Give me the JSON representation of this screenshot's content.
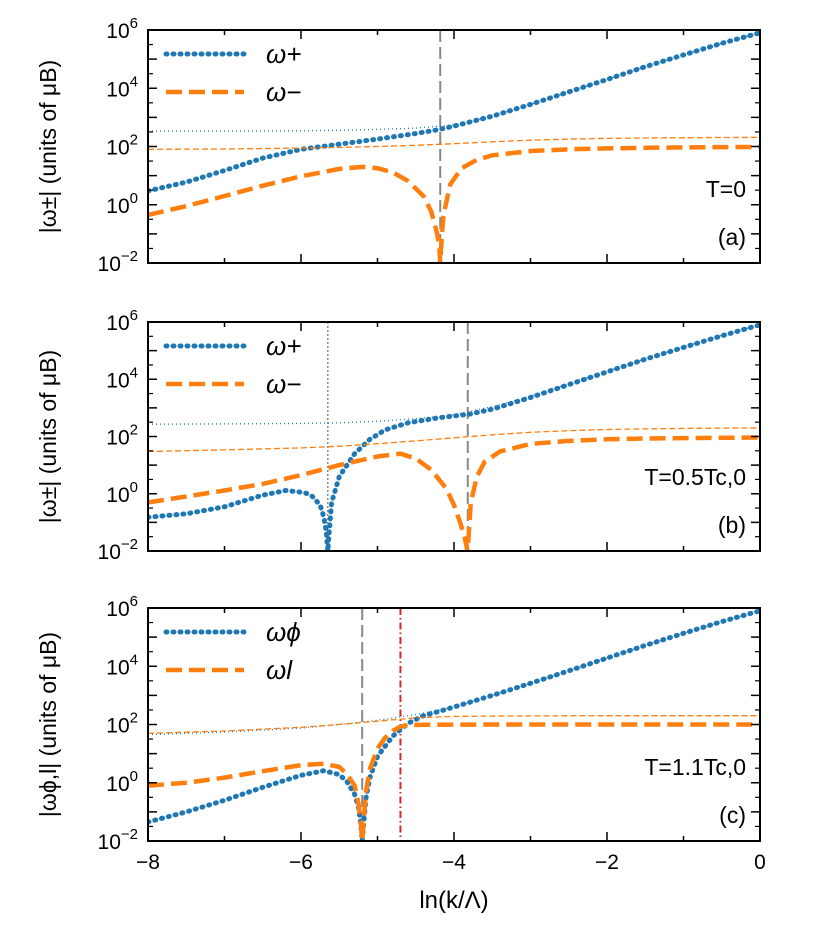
{
  "chart_data": {
    "type": "line",
    "x_axis": {
      "label": "ln(k/Λ)",
      "ticks": [
        -8,
        -6,
        -4,
        -2,
        0
      ],
      "tick_labels": [
        "−8",
        "−6",
        "−4",
        "−2",
        "0"
      ],
      "xlim": [
        -8,
        0
      ]
    },
    "y_scale": "log",
    "ylim": [
      0.01,
      1000000
    ],
    "y_tick_exponents": [
      -2,
      0,
      2,
      4,
      6
    ],
    "y_tick_base": "10",
    "colors": {
      "plus": "#1f77b4",
      "minus": "#ff7f0e",
      "vline_gray": "#888888",
      "vline_red": "#d62728"
    },
    "panels": [
      {
        "id": "a",
        "label": "(a)",
        "temperature": "T=0",
        "ylabel": "|ω±| (units of μB)",
        "legend": [
          "ω+",
          "ω−"
        ],
        "vlines": [
          {
            "x": -4.18,
            "style": "dashed",
            "color": "gray"
          }
        ],
        "series": [
          {
            "name": "ω+",
            "style": "dotted",
            "width": "thick",
            "x": [
              -8,
              -7.5,
              -7,
              -6.5,
              -6,
              -5.5,
              -5,
              -4.5,
              -4.2,
              -4,
              -3.5,
              -3,
              -2.5,
              -2,
              -1.5,
              -1,
              -0.5,
              0
            ],
            "y": [
              3,
              6,
              15,
              40,
              80,
              120,
              180,
              280,
              380,
              500,
              1100,
              2800,
              7500,
              20000,
              55000,
              140000,
              350000,
              800000
            ]
          },
          {
            "name": "ω+ reference",
            "style": "dotted",
            "width": "thin",
            "x": [
              -8,
              -7,
              -6,
              -5.5,
              -5,
              -4.5,
              -4,
              -3.5,
              -3,
              -2.5,
              -2,
              -1.5,
              -1,
              -0.5,
              0
            ],
            "y": [
              340,
              340,
              345,
              360,
              385,
              430,
              550,
              1100,
              2800,
              7500,
              20000,
              55000,
              140000,
              350000,
              800000
            ]
          },
          {
            "name": "ω−",
            "style": "dashed",
            "width": "thick",
            "x": [
              -8,
              -7.5,
              -7,
              -6.5,
              -6,
              -5.5,
              -5.2,
              -5,
              -4.8,
              -4.6,
              -4.4,
              -4.3,
              -4.22,
              -4.19,
              -4.18,
              -4.17,
              -4.14,
              -4.05,
              -3.9,
              -3.7,
              -3.5,
              -3,
              -2.5,
              -2,
              -1.5,
              -1,
              -0.5,
              0
            ],
            "y": [
              0.45,
              0.9,
              2,
              4.5,
              9.5,
              17,
              20,
              18,
              13,
              6.5,
              2,
              0.6,
              0.1,
              0.03,
              0.01,
              0.03,
              0.4,
              5,
              18,
              35,
              50,
              70,
              80,
              86,
              90,
              93,
              95,
              97
            ]
          },
          {
            "name": "ω− reference",
            "style": "dashed",
            "width": "thin",
            "x": [
              -8,
              -7,
              -6,
              -5.5,
              -5,
              -4.5,
              -4,
              -3.5,
              -3,
              -2.5,
              -2,
              -1.5,
              -1,
              -0.5,
              0
            ],
            "y": [
              80,
              82,
              88,
              93,
              100,
              110,
              125,
              145,
              165,
              180,
              190,
              196,
              200,
              203,
              205
            ]
          }
        ]
      },
      {
        "id": "b",
        "label": "(b)",
        "temperature": "T=0.5Tc,0",
        "ylabel": "|ω±| (units of μB)",
        "legend": [
          "ω+",
          "ω−"
        ],
        "vlines": [
          {
            "x": -5.65,
            "style": "dotted",
            "color": "gray"
          },
          {
            "x": -3.82,
            "style": "dashed",
            "color": "gray"
          }
        ],
        "series": [
          {
            "name": "ω+",
            "style": "dotted",
            "width": "thick",
            "x": [
              -8,
              -7.5,
              -7,
              -6.5,
              -6.2,
              -5.95,
              -5.85,
              -5.75,
              -5.7,
              -5.67,
              -5.65,
              -5.63,
              -5.6,
              -5.5,
              -5.3,
              -5.1,
              -4.9,
              -4.6,
              -4.2,
              -3.8,
              -3.5,
              -3,
              -2.5,
              -2,
              -1.5,
              -1,
              -0.5,
              0
            ],
            "y": [
              0.15,
              0.2,
              0.35,
              0.9,
              1.3,
              1.1,
              0.8,
              0.4,
              0.15,
              0.05,
              0.01,
              0.05,
              0.5,
              4,
              25,
              80,
              170,
              300,
              450,
              600,
              900,
              2300,
              6500,
              18000,
              50000,
              130000,
              330000,
              800000
            ]
          },
          {
            "name": "ω+ reference",
            "style": "dotted",
            "width": "thin",
            "x": [
              -8,
              -7,
              -6,
              -5.5,
              -5,
              -4.5,
              -4,
              -3.5,
              -3,
              -2.5,
              -2,
              -1.5,
              -1,
              -0.5,
              0
            ],
            "y": [
              270,
              275,
              285,
              300,
              340,
              420,
              580,
              1100,
              2600,
              7000,
              19000,
              52000,
              135000,
              340000,
              800000
            ]
          },
          {
            "name": "ω−",
            "style": "dashed",
            "width": "thick",
            "x": [
              -8,
              -7.5,
              -7,
              -6.5,
              -6,
              -5.5,
              -5,
              -4.7,
              -4.5,
              -4.3,
              -4.1,
              -4,
              -3.92,
              -3.86,
              -3.83,
              -3.82,
              -3.81,
              -3.78,
              -3.7,
              -3.6,
              -3.4,
              -3,
              -2.5,
              -2,
              -1.5,
              -1,
              -0.5,
              0
            ],
            "y": [
              0.5,
              0.8,
              1.3,
              2.2,
              4.5,
              10,
              20,
              25,
              17,
              7,
              1.5,
              0.4,
              0.1,
              0.03,
              0.012,
              0.01,
              0.03,
              0.5,
              4,
              13,
              30,
              55,
              70,
              80,
              85,
              88,
              90,
              92
            ]
          },
          {
            "name": "ω− reference",
            "style": "dashed",
            "width": "thin",
            "x": [
              -8,
              -7,
              -6,
              -5.5,
              -5,
              -4.5,
              -4,
              -3.5,
              -3,
              -2.5,
              -2,
              -1.5,
              -1,
              -0.5,
              0
            ],
            "y": [
              30,
              34,
              40,
              46,
              56,
              70,
              90,
              115,
              140,
              160,
              175,
              185,
              192,
              196,
              200
            ]
          }
        ]
      },
      {
        "id": "c",
        "label": "(c)",
        "temperature": "T=1.1Tc,0",
        "ylabel": "|ωϕ,l| (units of μB)",
        "legend": [
          "ωϕ",
          "ωl"
        ],
        "vlines": [
          {
            "x": -5.2,
            "style": "dashed",
            "color": "gray"
          },
          {
            "x": -4.7,
            "style": "dashdot",
            "color": "red"
          }
        ],
        "series": [
          {
            "name": "ωϕ",
            "style": "dotted",
            "width": "thick",
            "x": [
              -8,
              -7.5,
              -7,
              -6.5,
              -6,
              -5.7,
              -5.5,
              -5.4,
              -5.3,
              -5.25,
              -5.22,
              -5.2,
              -5.18,
              -5.15,
              -5.1,
              -5,
              -4.8,
              -4.6,
              -4.4,
              -4.2,
              -4,
              -3.5,
              -3,
              -2.5,
              -2,
              -1.5,
              -1,
              -0.5,
              0
            ],
            "y": [
              0.045,
              0.1,
              0.25,
              0.7,
              1.8,
              2.6,
              1.9,
              1.1,
              0.4,
              0.15,
              0.04,
              0.01,
              0.04,
              0.3,
              1.5,
              8,
              40,
              110,
              200,
              280,
              400,
              1000,
              2600,
              7000,
              19000,
              52000,
              135000,
              340000,
              800000
            ]
          },
          {
            "name": "ωϕ reference",
            "style": "dotted",
            "width": "thin",
            "x": [
              -8,
              -7,
              -6,
              -5.5,
              -5,
              -4.5,
              -4,
              -3.5,
              -3,
              -2.5,
              -2,
              -1.5,
              -1,
              -0.5,
              0
            ],
            "y": [
              45,
              55,
              75,
              100,
              140,
              220,
              400,
              1000,
              2600,
              7000,
              19000,
              52000,
              135000,
              340000,
              800000
            ]
          },
          {
            "name": "ωl",
            "style": "dashed",
            "width": "thick",
            "x": [
              -8,
              -7.5,
              -7,
              -6.5,
              -6,
              -5.7,
              -5.5,
              -5.4,
              -5.3,
              -5.25,
              -5.22,
              -5.2,
              -5.18,
              -5.15,
              -5.1,
              -5,
              -4.9,
              -4.8,
              -4.7,
              -4.6,
              -4.4,
              -4,
              -3,
              -2,
              -1,
              0
            ],
            "y": [
              0.8,
              1,
              1.5,
              2.5,
              4,
              4.5,
              3.5,
              2,
              0.8,
              0.2,
              0.05,
              0.01,
              0.05,
              0.5,
              3,
              15,
              35,
              60,
              85,
              95,
              98,
              99,
              100,
              100,
              100,
              100
            ]
          },
          {
            "name": "ωl reference",
            "style": "dashed",
            "width": "thin",
            "x": [
              -8,
              -7,
              -6,
              -5.5,
              -5,
              -4.5,
              -4,
              -3.5,
              -3,
              -2,
              -1,
              0
            ],
            "y": [
              50,
              60,
              80,
              100,
              130,
              170,
              190,
              195,
              198,
              200,
              200,
              200
            ]
          }
        ]
      }
    ]
  }
}
